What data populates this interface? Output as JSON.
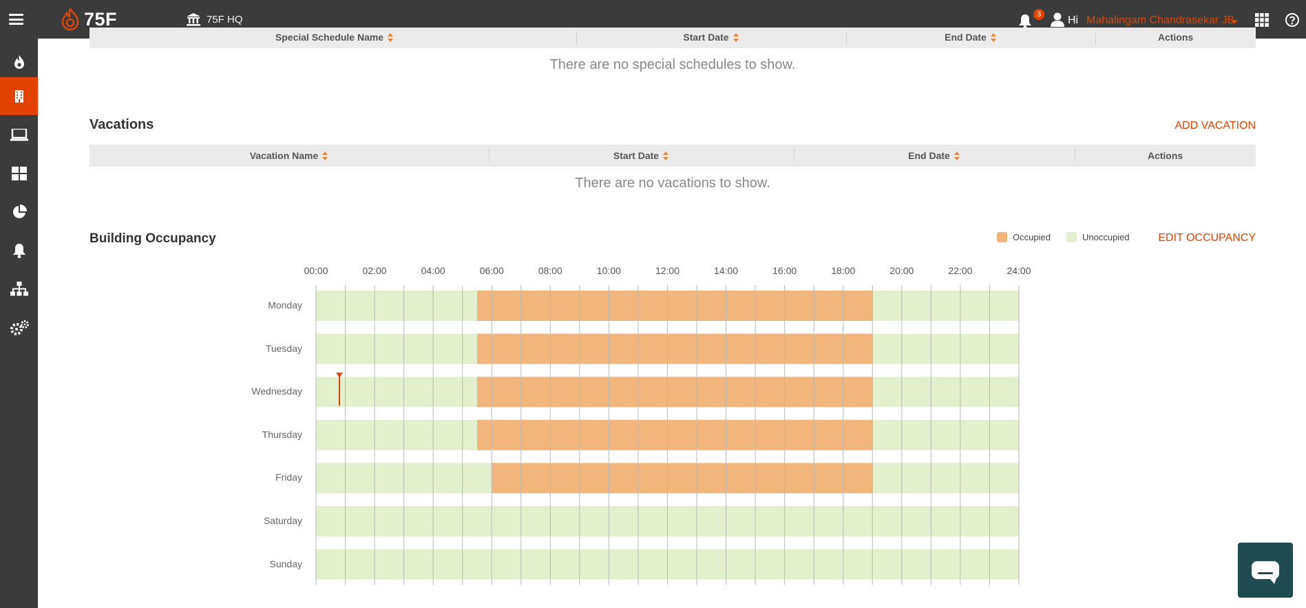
{
  "app": {
    "logo_text": "75F",
    "site_name": "75F HQ",
    "notifications_count": "3",
    "greeting": "Hi",
    "user_name": "Mahalingam Chandrasekar JB"
  },
  "sidebar": {
    "items": [
      {
        "name": "sidebar-item-heating",
        "icon": "flame-icon",
        "active": false
      },
      {
        "name": "sidebar-item-building",
        "icon": "building-icon",
        "active": true
      },
      {
        "name": "sidebar-item-devices",
        "icon": "laptop-icon",
        "active": false
      },
      {
        "name": "sidebar-item-dashboard",
        "icon": "grid-icon",
        "active": false
      },
      {
        "name": "sidebar-item-analytics",
        "icon": "pie-chart-icon",
        "active": false
      },
      {
        "name": "sidebar-item-alerts",
        "icon": "bell-icon",
        "active": false
      },
      {
        "name": "sidebar-item-hierarchy",
        "icon": "sitemap-icon",
        "active": false
      },
      {
        "name": "sidebar-item-settings",
        "icon": "gears-icon",
        "active": false
      }
    ]
  },
  "special_schedules": {
    "columns": [
      "Special Schedule Name",
      "Start Date",
      "End Date",
      "Actions"
    ],
    "empty_message": "There are no special schedules to show."
  },
  "vacations": {
    "title": "Vacations",
    "add_label": "ADD VACATION",
    "columns": [
      "Vacation Name",
      "Start Date",
      "End Date",
      "Actions"
    ],
    "empty_message": "There are no vacations to show."
  },
  "occupancy": {
    "title": "Building Occupancy",
    "edit_label": "EDIT OCCUPANCY",
    "legend": {
      "occupied": "Occupied",
      "unoccupied": "Unoccupied"
    },
    "colors": {
      "occupied": "#f2b67c",
      "unoccupied": "#e3f0cd",
      "marker": "#e24301",
      "accent": "#e24301"
    },
    "current_time_day": "Wednesday",
    "current_time_hour": 0.8
  },
  "chart_data": {
    "type": "timeline",
    "x_ticks": [
      "00:00",
      "02:00",
      "04:00",
      "06:00",
      "08:00",
      "10:00",
      "12:00",
      "14:00",
      "16:00",
      "18:00",
      "20:00",
      "22:00",
      "24:00"
    ],
    "xlim": [
      0,
      24
    ],
    "grid": true,
    "categories": [
      "Monday",
      "Tuesday",
      "Wednesday",
      "Thursday",
      "Friday",
      "Saturday",
      "Sunday"
    ],
    "occupied": [
      {
        "day": "Monday",
        "start": 5.5,
        "end": 19.0
      },
      {
        "day": "Tuesday",
        "start": 5.5,
        "end": 19.0
      },
      {
        "day": "Wednesday",
        "start": 5.5,
        "end": 19.0
      },
      {
        "day": "Thursday",
        "start": 5.5,
        "end": 19.0
      },
      {
        "day": "Friday",
        "start": 6.0,
        "end": 19.0
      },
      {
        "day": "Saturday",
        "start": null,
        "end": null
      },
      {
        "day": "Sunday",
        "start": null,
        "end": null
      }
    ],
    "legend": [
      "Occupied",
      "Unoccupied"
    ],
    "legend_position": "top-right"
  }
}
